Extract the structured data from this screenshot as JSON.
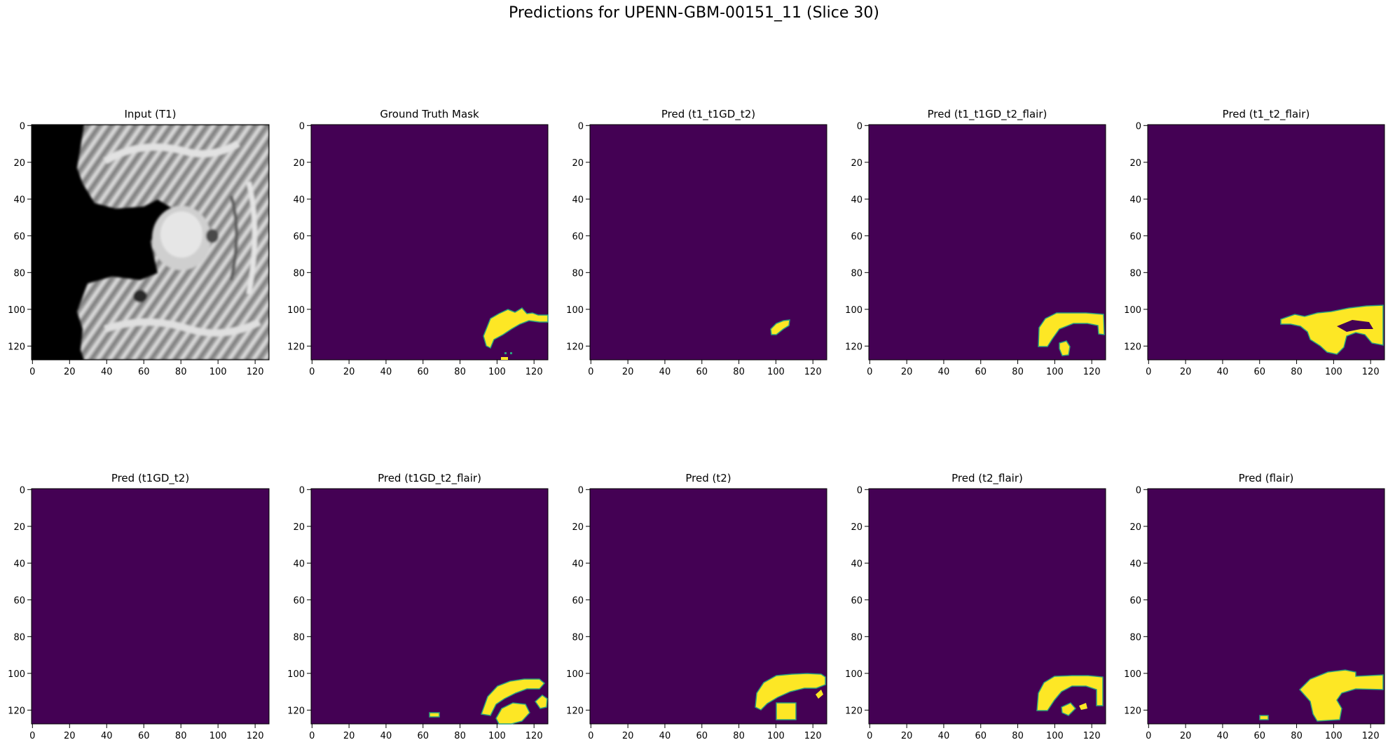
{
  "title": "Predictions for UPENN-GBM-00151_11 (Slice 30)",
  "tick_labels": [
    "0",
    "20",
    "40",
    "60",
    "80",
    "100",
    "120"
  ],
  "axis_range": [
    0,
    127
  ],
  "colors": {
    "background_mask": "#440154",
    "foreground_mask": "#fde725",
    "edge": "#2aa07d"
  },
  "panels": [
    {
      "title": "Input (T1)",
      "kind": "mri"
    },
    {
      "title": "Ground Truth Mask",
      "kind": "mask"
    },
    {
      "title": "Pred (t1_t1GD_t2)",
      "kind": "mask"
    },
    {
      "title": "Pred (t1_t1GD_t2_flair)",
      "kind": "mask"
    },
    {
      "title": "Pred (t1_t2_flair)",
      "kind": "mask"
    },
    {
      "title": "Pred (t1GD_t2)",
      "kind": "mask"
    },
    {
      "title": "Pred (t1GD_t2_flair)",
      "kind": "mask"
    },
    {
      "title": "Pred (t2)",
      "kind": "mask"
    },
    {
      "title": "Pred (t2_flair)",
      "kind": "mask"
    },
    {
      "title": "Pred (flair)",
      "kind": "mask"
    }
  ]
}
